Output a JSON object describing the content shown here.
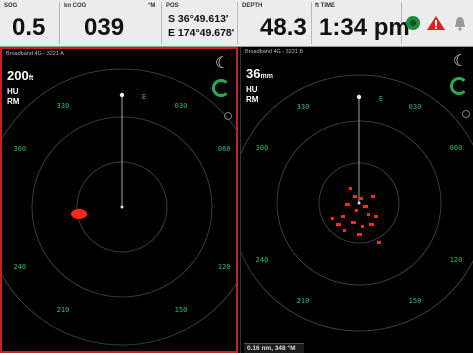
{
  "top_bar": {
    "sog": {
      "label": "SOG",
      "value": "0.5"
    },
    "cog": {
      "label": "kn COG",
      "value": "039",
      "unit": "°M"
    },
    "pos": {
      "label": "POS",
      "lat": "S 36°49.613'",
      "lon": "E 174°49.678'"
    },
    "depth": {
      "label": "DEPTH",
      "value": "48.3"
    },
    "time": {
      "label": "ft TIME",
      "value": "1:34 pm"
    }
  },
  "left_panel": {
    "title": "Broadband 4G - 3221 A",
    "range_value": "200",
    "range_unit": "ft",
    "mode1": "HU",
    "mode2": "RM",
    "bearings": [
      "030",
      "060",
      "120",
      "150",
      "210",
      "240",
      "300",
      "330"
    ],
    "cardinal": "E",
    "accent": "#c42323"
  },
  "right_panel": {
    "title": "Broadband 4G - 3221 B",
    "range_value": "36",
    "range_unit": "mm",
    "mode1": "HU",
    "mode2": "RM",
    "bearings": [
      "030",
      "060",
      "120",
      "150",
      "210",
      "240",
      "300",
      "330"
    ],
    "cardinal": "E",
    "scale": "0.16 nm, 348 °M"
  },
  "colors": {
    "ring": "#3a3a3a",
    "label": "#2fbf63",
    "echo": "#ff2a1a"
  },
  "icons": [
    "radar-status-icon",
    "alarm-icon",
    "bell-icon",
    "night-mode-icon",
    "gain-gauge-icon"
  ]
}
